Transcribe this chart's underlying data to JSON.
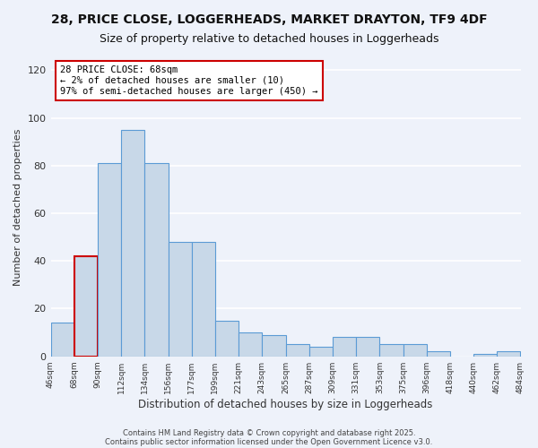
{
  "title1": "28, PRICE CLOSE, LOGGERHEADS, MARKET DRAYTON, TF9 4DF",
  "title2": "Size of property relative to detached houses in Loggerheads",
  "xlabel": "Distribution of detached houses by size in Loggerheads",
  "ylabel": "Number of detached properties",
  "bar_values": [
    14,
    42,
    81,
    95,
    81,
    48,
    48,
    15,
    10,
    9,
    5,
    4,
    8,
    8,
    5,
    5,
    2,
    0,
    1,
    2
  ],
  "tick_labels": [
    "46sqm",
    "68sqm",
    "90sqm",
    "112sqm",
    "134sqm",
    "156sqm",
    "177sqm",
    "199sqm",
    "221sqm",
    "243sqm",
    "265sqm",
    "287sqm",
    "309sqm",
    "331sqm",
    "353sqm",
    "375sqm",
    "396sqm",
    "418sqm",
    "440sqm",
    "462sqm",
    "484sqm"
  ],
  "highlight_bar_index": 1,
  "bar_color": "#c8d8e8",
  "bar_edge_color": "#5b9bd5",
  "highlight_bar_edge_color": "#cc0000",
  "annotation_title": "28 PRICE CLOSE: 68sqm",
  "annotation_line1": "← 2% of detached houses are smaller (10)",
  "annotation_line2": "97% of semi-detached houses are larger (450) →",
  "annotation_box_color": "#ffffff",
  "annotation_box_edge_color": "#cc0000",
  "ylim": [
    0,
    125
  ],
  "yticks": [
    0,
    20,
    40,
    60,
    80,
    100,
    120
  ],
  "footer1": "Contains HM Land Registry data © Crown copyright and database right 2025.",
  "footer2": "Contains public sector information licensed under the Open Government Licence v3.0.",
  "bg_color": "#eef2fa",
  "grid_color": "#ffffff",
  "title_fontsize": 10,
  "subtitle_fontsize": 9
}
